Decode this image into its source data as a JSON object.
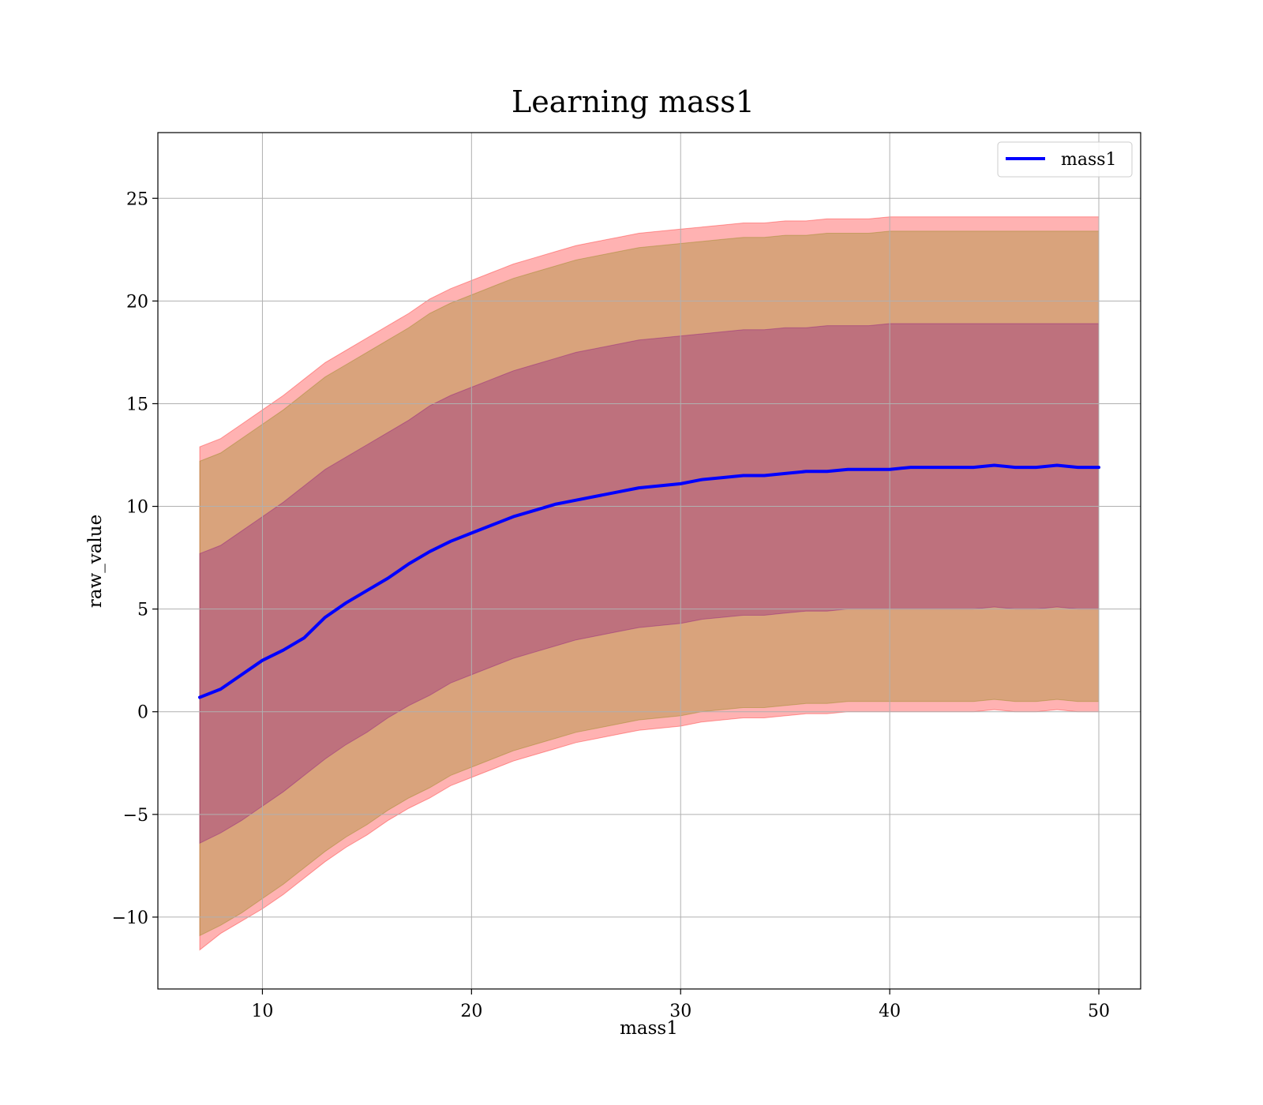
{
  "chart_data": {
    "type": "area",
    "title": "Learning mass1",
    "xlabel": "mass1",
    "ylabel": "raw_value",
    "xlim": [
      5,
      52
    ],
    "ylim": [
      -13.5,
      28.2
    ],
    "xticks": [
      10,
      20,
      30,
      40,
      50
    ],
    "yticks": [
      -10,
      -5,
      0,
      5,
      10,
      15,
      20,
      25
    ],
    "xtick_labels": [
      "10",
      "20",
      "30",
      "40",
      "50"
    ],
    "ytick_labels": [
      "−10",
      "−5",
      "0",
      "5",
      "10",
      "15",
      "20",
      "25"
    ],
    "grid": true,
    "legend": {
      "placement": "top-right",
      "entries": [
        "mass1"
      ]
    },
    "x": [
      7,
      8,
      9,
      10,
      11,
      12,
      13,
      14,
      15,
      16,
      17,
      18,
      19,
      20,
      21,
      22,
      23,
      24,
      25,
      26,
      27,
      28,
      29,
      30,
      31,
      32,
      33,
      34,
      35,
      36,
      37,
      38,
      39,
      40,
      41,
      42,
      43,
      44,
      45,
      46,
      47,
      48,
      49,
      50
    ],
    "series": [
      {
        "name": "mass1",
        "color": "#0000ff",
        "values": [
          0.7,
          1.1,
          1.8,
          2.5,
          3.0,
          3.6,
          4.6,
          5.3,
          5.9,
          6.5,
          7.2,
          7.8,
          8.3,
          8.7,
          9.1,
          9.5,
          9.8,
          10.1,
          10.3,
          10.5,
          10.7,
          10.9,
          11.0,
          11.1,
          11.3,
          11.4,
          11.5,
          11.5,
          11.6,
          11.7,
          11.7,
          11.8,
          11.8,
          11.8,
          11.9,
          11.9,
          11.9,
          11.9,
          12.0,
          11.9,
          11.9,
          12.0,
          11.9,
          11.9
        ]
      }
    ],
    "bands": [
      {
        "color": "#ff0000",
        "lower": [
          -11.6,
          -10.8,
          -10.2,
          -9.6,
          -8.9,
          -8.1,
          -7.3,
          -6.6,
          -6.0,
          -5.3,
          -4.7,
          -4.2,
          -3.6,
          -3.2,
          -2.8,
          -2.4,
          -2.1,
          -1.8,
          -1.5,
          -1.3,
          -1.1,
          -0.9,
          -0.8,
          -0.7,
          -0.5,
          -0.4,
          -0.3,
          -0.3,
          -0.2,
          -0.1,
          -0.1,
          0.0,
          0.0,
          0.0,
          0.0,
          0.0,
          0.0,
          0.0,
          0.1,
          0.0,
          0.0,
          0.1,
          0.0,
          0.0
        ],
        "upper": [
          12.9,
          13.3,
          14.0,
          14.7,
          15.4,
          16.2,
          17.0,
          17.6,
          18.2,
          18.8,
          19.4,
          20.1,
          20.6,
          21.0,
          21.4,
          21.8,
          22.1,
          22.4,
          22.7,
          22.9,
          23.1,
          23.3,
          23.4,
          23.5,
          23.6,
          23.7,
          23.8,
          23.8,
          23.9,
          23.9,
          24.0,
          24.0,
          24.0,
          24.1,
          24.1,
          24.1,
          24.1,
          24.1,
          24.1,
          24.1,
          24.1,
          24.1,
          24.1,
          24.1
        ]
      },
      {
        "color": "#808000",
        "lower": [
          -10.9,
          -10.4,
          -9.8,
          -9.1,
          -8.4,
          -7.6,
          -6.8,
          -6.1,
          -5.5,
          -4.8,
          -4.2,
          -3.7,
          -3.1,
          -2.7,
          -2.3,
          -1.9,
          -1.6,
          -1.3,
          -1.0,
          -0.8,
          -0.6,
          -0.4,
          -0.3,
          -0.2,
          0.0,
          0.1,
          0.2,
          0.2,
          0.3,
          0.4,
          0.4,
          0.5,
          0.5,
          0.5,
          0.5,
          0.5,
          0.5,
          0.5,
          0.6,
          0.5,
          0.5,
          0.6,
          0.5,
          0.5
        ],
        "upper": [
          12.2,
          12.6,
          13.3,
          14.0,
          14.7,
          15.5,
          16.3,
          16.9,
          17.5,
          18.1,
          18.7,
          19.4,
          19.9,
          20.3,
          20.7,
          21.1,
          21.4,
          21.7,
          22.0,
          22.2,
          22.4,
          22.6,
          22.7,
          22.8,
          22.9,
          23.0,
          23.1,
          23.1,
          23.2,
          23.2,
          23.3,
          23.3,
          23.3,
          23.4,
          23.4,
          23.4,
          23.4,
          23.4,
          23.4,
          23.4,
          23.4,
          23.4,
          23.4,
          23.4
        ]
      },
      {
        "color": "#800080",
        "lower": [
          -6.4,
          -5.9,
          -5.3,
          -4.6,
          -3.9,
          -3.1,
          -2.3,
          -1.6,
          -1.0,
          -0.3,
          0.3,
          0.8,
          1.4,
          1.8,
          2.2,
          2.6,
          2.9,
          3.2,
          3.5,
          3.7,
          3.9,
          4.1,
          4.2,
          4.3,
          4.5,
          4.6,
          4.7,
          4.7,
          4.8,
          4.9,
          4.9,
          5.0,
          5.0,
          5.0,
          5.0,
          5.0,
          5.0,
          5.0,
          5.1,
          5.0,
          5.0,
          5.1,
          5.0,
          5.0
        ],
        "upper": [
          7.7,
          8.1,
          8.8,
          9.5,
          10.2,
          11.0,
          11.8,
          12.4,
          13.0,
          13.6,
          14.2,
          14.9,
          15.4,
          15.8,
          16.2,
          16.6,
          16.9,
          17.2,
          17.5,
          17.7,
          17.9,
          18.1,
          18.2,
          18.3,
          18.4,
          18.5,
          18.6,
          18.6,
          18.7,
          18.7,
          18.8,
          18.8,
          18.8,
          18.9,
          18.9,
          18.9,
          18.9,
          18.9,
          18.9,
          18.9,
          18.9,
          18.9,
          18.9,
          18.9
        ]
      }
    ]
  }
}
